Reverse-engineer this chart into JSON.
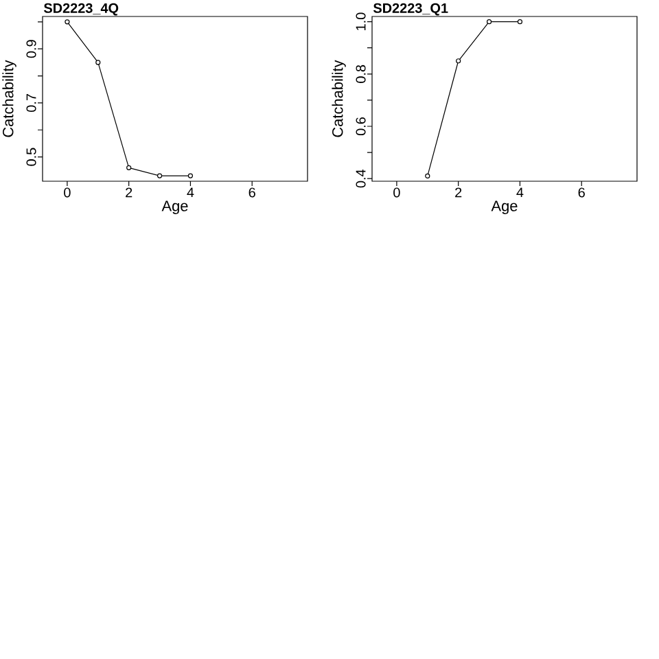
{
  "chart_data": [
    {
      "type": "line",
      "title": "SD2223_4Q",
      "xlabel": "Age",
      "ylabel": "Catchability",
      "x": [
        0,
        1,
        2,
        3,
        4
      ],
      "values": [
        1.0,
        0.85,
        0.46,
        0.43,
        0.43
      ],
      "color": "#000000",
      "marker": "circle",
      "line_style": "solid",
      "xlim": [
        -0.8,
        7.8
      ],
      "ylim": [
        0.41,
        1.02
      ],
      "xticks": [
        0,
        2,
        4,
        6
      ],
      "yticks": [
        0.5,
        {
          "value": 0.6,
          "label": null
        },
        0.7,
        {
          "value": 0.8,
          "label": null
        },
        0.9,
        {
          "value": 1.0,
          "label": null
        }
      ]
    },
    {
      "type": "line",
      "title": "SD2223_Q1",
      "xlabel": "Age",
      "ylabel": "Catchability",
      "x": [
        1,
        2,
        3,
        4
      ],
      "values": [
        0.41,
        0.85,
        1.0,
        1.0
      ],
      "color": "#000000",
      "marker": "circle",
      "line_style": "solid",
      "xlim": [
        -0.8,
        7.8
      ],
      "ylim": [
        0.39,
        1.02
      ],
      "xticks": [
        0,
        2,
        4,
        6
      ],
      "yticks": [
        0.4,
        {
          "value": 0.5,
          "label": null
        },
        0.6,
        {
          "value": 0.7,
          "label": null
        },
        0.8,
        {
          "value": 0.9,
          "label": null
        },
        {
          "value": 1.0,
          "label": "1.0"
        }
      ]
    }
  ]
}
